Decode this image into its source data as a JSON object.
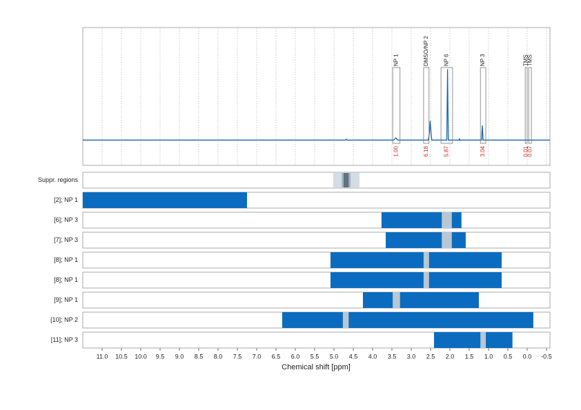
{
  "chart_data": {
    "type": "nmr",
    "xlabel": "Chemical shift [ppm]",
    "xlim": [
      11.5,
      -0.59
    ],
    "xticks": [
      {
        "value": 11,
        "label": "11.0"
      },
      10.5,
      {
        "value": 10,
        "label": "10.0"
      },
      9.5,
      {
        "value": 9,
        "label": "9.0"
      },
      8.5,
      {
        "value": 8,
        "label": "8.0"
      },
      7.5,
      {
        "value": 7,
        "label": "7.0"
      },
      6.5,
      {
        "value": 6,
        "label": "6.0"
      },
      5.5,
      {
        "value": 5,
        "label": "5.0"
      },
      4.5,
      {
        "value": 4,
        "label": "4.0"
      },
      3.5,
      {
        "value": 3,
        "label": "3.0"
      },
      2.5,
      {
        "value": 2,
        "label": "2.0"
      },
      1.5,
      {
        "value": 1,
        "label": "1.0"
      },
      0.5,
      {
        "value": 0,
        "label": "0.0"
      },
      -0.5
    ],
    "grid": true,
    "spectrum": {
      "color": "#1565b0",
      "ylim": [
        -22.5,
        100
      ],
      "x": [
        11.5,
        4.7,
        4.68,
        4.66,
        3.45,
        3.4,
        3.35,
        2.56,
        2.53,
        2.51,
        2.49,
        2.47,
        2.08,
        2.06,
        2.04,
        1.76,
        1.75,
        1.74,
        1.18,
        1.16,
        1.14,
        -0.59
      ],
      "values": [
        0,
        0,
        0.8,
        0,
        0,
        2,
        0,
        0,
        6,
        17,
        8,
        0,
        0,
        63,
        0,
        0,
        1.4,
        0,
        0,
        13,
        0,
        0
      ]
    },
    "regions": {
      "labels": [
        "NP 1",
        "DMSO/NP 2",
        "NP 6",
        "NP 3",
        "TMS",
        "TMS"
      ],
      "start": [
        3.48,
        2.68,
        2.23,
        1.21,
        0.05,
        -0.04
      ],
      "end": [
        3.29,
        2.54,
        1.93,
        1.07,
        0.0,
        -0.11
      ],
      "values": [
        1,
        6.18,
        5.87,
        3.04,
        0.01,
        0.07
      ],
      "value_labels": [
        "1.00",
        "6.18",
        "5.87",
        "3.04",
        "0.01",
        "0.07"
      ]
    },
    "suppression": {
      "label": "Suppr. regions",
      "colors": [
        "#d3dde6",
        "#a4b3c0",
        "#5d7383"
      ],
      "bands": [
        [
          5.02,
          4.34
        ],
        [
          4.8,
          4.57
        ],
        [
          4.75,
          4.62
        ]
      ]
    },
    "bar_color": "#0b6cbf",
    "gap_color": "#b8c7d3",
    "rows": [
      {
        "label": "[2]; NP 1",
        "range": [
          11.5,
          7.25
        ]
      },
      {
        "label": "[6]; NP 3",
        "range": [
          3.77,
          1.7
        ],
        "gaps": [
          [
            2.21,
            1.95
          ]
        ]
      },
      {
        "label": "[7]; NP 3",
        "range": [
          3.66,
          1.59
        ],
        "gaps": [
          [
            2.21,
            1.95
          ]
        ]
      },
      {
        "label": "[8]; NP 1",
        "range": [
          5.09,
          0.66
        ],
        "gaps": [
          [
            2.68,
            2.54
          ]
        ]
      },
      {
        "label": "[8]; NP 1",
        "range": [
          5.09,
          0.66
        ],
        "gaps": [
          [
            2.68,
            2.54
          ]
        ]
      },
      {
        "label": "[9]; NP 1",
        "range": [
          4.25,
          1.25
        ],
        "gaps": [
          [
            3.48,
            3.29
          ]
        ]
      },
      {
        "label": "[10]; NP 2",
        "range": [
          6.34,
          -0.16
        ],
        "gaps": [
          [
            4.77,
            4.62
          ]
        ]
      },
      {
        "label": "[11]; NP 3",
        "range": [
          2.41,
          0.38
        ],
        "gaps": [
          [
            1.21,
            1.07
          ]
        ]
      }
    ]
  }
}
